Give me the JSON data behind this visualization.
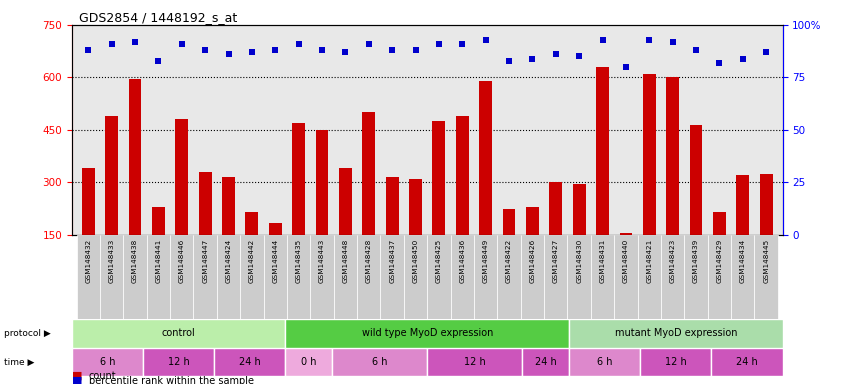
{
  "title": "GDS2854 / 1448192_s_at",
  "samples": [
    "GSM148432",
    "GSM148433",
    "GSM148438",
    "GSM148441",
    "GSM148446",
    "GSM148447",
    "GSM148424",
    "GSM148442",
    "GSM148444",
    "GSM148435",
    "GSM148443",
    "GSM148448",
    "GSM148428",
    "GSM148437",
    "GSM148450",
    "GSM148425",
    "GSM148436",
    "GSM148449",
    "GSM148422",
    "GSM148426",
    "GSM148427",
    "GSM148430",
    "GSM148431",
    "GSM148440",
    "GSM148421",
    "GSM148423",
    "GSM148439",
    "GSM148429",
    "GSM148434",
    "GSM148445"
  ],
  "counts": [
    340,
    490,
    595,
    230,
    480,
    330,
    315,
    215,
    185,
    470,
    450,
    340,
    500,
    315,
    310,
    475,
    490,
    590,
    225,
    230,
    300,
    295,
    630,
    155,
    610,
    600,
    465,
    215,
    320,
    325
  ],
  "percentiles": [
    88,
    91,
    92,
    83,
    91,
    88,
    86,
    87,
    88,
    91,
    88,
    87,
    91,
    88,
    88,
    91,
    91,
    93,
    83,
    84,
    86,
    85,
    93,
    80,
    93,
    92,
    88,
    82,
    84,
    87
  ],
  "ylim_left": [
    150,
    750
  ],
  "ylim_right": [
    0,
    100
  ],
  "yticks_left": [
    150,
    300,
    450,
    600,
    750
  ],
  "ytick_labels_left": [
    "150",
    "300",
    "450",
    "600",
    "750"
  ],
  "yticks_right": [
    0,
    25,
    50,
    75,
    100
  ],
  "ytick_labels_right": [
    "0",
    "25",
    "50",
    "75",
    "100%"
  ],
  "bar_color": "#cc0000",
  "dot_color": "#0000cc",
  "protocol_groups": [
    {
      "label": "control",
      "start": 0,
      "end": 9,
      "color": "#bbeeaa"
    },
    {
      "label": "wild type MyoD expression",
      "start": 9,
      "end": 21,
      "color": "#55cc44"
    },
    {
      "label": "mutant MyoD expression",
      "start": 21,
      "end": 30,
      "color": "#aaddaa"
    }
  ],
  "time_groups": [
    {
      "label": "6 h",
      "start": 0,
      "end": 3,
      "color": "#dd88cc"
    },
    {
      "label": "12 h",
      "start": 3,
      "end": 6,
      "color": "#cc55bb"
    },
    {
      "label": "24 h",
      "start": 6,
      "end": 9,
      "color": "#cc55bb"
    },
    {
      "label": "0 h",
      "start": 9,
      "end": 11,
      "color": "#eeaadd"
    },
    {
      "label": "6 h",
      "start": 11,
      "end": 15,
      "color": "#dd88cc"
    },
    {
      "label": "12 h",
      "start": 15,
      "end": 19,
      "color": "#cc55bb"
    },
    {
      "label": "24 h",
      "start": 19,
      "end": 21,
      "color": "#cc55bb"
    },
    {
      "label": "6 h",
      "start": 21,
      "end": 24,
      "color": "#dd88cc"
    },
    {
      "label": "12 h",
      "start": 24,
      "end": 27,
      "color": "#cc55bb"
    },
    {
      "label": "24 h",
      "start": 27,
      "end": 30,
      "color": "#cc55bb"
    }
  ],
  "label_bg": "#cccccc",
  "bg_color": "#e8e8e8"
}
